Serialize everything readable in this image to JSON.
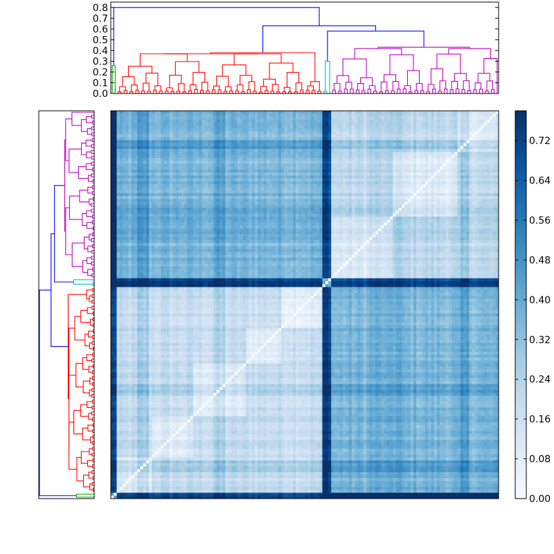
{
  "chart_data": [
    {
      "type": "dendrogram",
      "orientation": "top",
      "ylim": [
        0.0,
        0.85
      ],
      "yticks": [
        "0.0",
        "0.1",
        "0.2",
        "0.3",
        "0.4",
        "0.5",
        "0.6",
        "0.7",
        "0.8"
      ],
      "cluster_colors": [
        "#00a000",
        "#ff0000",
        "#00bfbf",
        "#bf00bf"
      ],
      "link_color": "#0000ff"
    },
    {
      "type": "dendrogram",
      "orientation": "left",
      "cluster_colors": [
        "#00a000",
        "#ff0000",
        "#00bfbf",
        "#bf00bf"
      ],
      "link_color": "#0000ff"
    },
    {
      "type": "heatmap",
      "description_of_values": "symmetric distance matrix with zero diagonal",
      "colormap": "Blues",
      "vmin": 0.0,
      "vmax": 0.78
    },
    {
      "type": "colorbar",
      "ticks": [
        "0.00",
        "0.08",
        "0.16",
        "0.24",
        "0.32",
        "0.40",
        "0.48",
        "0.56",
        "0.64",
        "0.72"
      ],
      "tick_values": [
        0.0,
        0.08,
        0.16,
        0.24,
        0.32,
        0.4,
        0.48,
        0.56,
        0.64,
        0.72
      ],
      "vmin": 0.0,
      "vmax": 0.78
    }
  ]
}
